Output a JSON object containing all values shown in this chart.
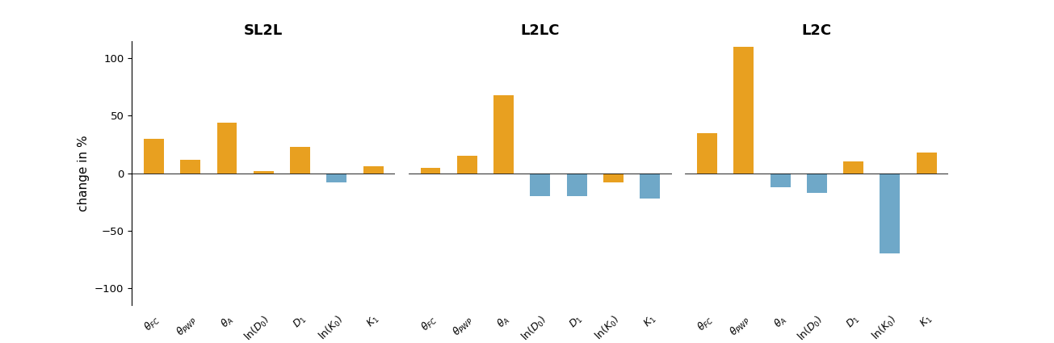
{
  "subplot_titles": [
    "SL2L",
    "L2LC",
    "L2C"
  ],
  "categories": [
    "θₜₛ",
    "θₚᵡₚ",
    "θₐ",
    "ln(D₀)",
    "D₁",
    "ln(K₀)",
    "K₁"
  ],
  "values": [
    [
      30,
      12,
      44,
      2,
      23,
      -8,
      6
    ],
    [
      5,
      15,
      68,
      -20,
      -20,
      -8,
      -22
    ],
    [
      35,
      110,
      -12,
      -17,
      10,
      -70,
      18
    ]
  ],
  "colors": [
    [
      "#E8A020",
      "#E8A020",
      "#E8A020",
      "#E8A020",
      "#E8A020",
      "#6FA8C8",
      "#E8A020"
    ],
    [
      "#E8A020",
      "#E8A020",
      "#E8A020",
      "#6FA8C8",
      "#6FA8C8",
      "#E8A020",
      "#6FA8C8"
    ],
    [
      "#E8A020",
      "#E8A020",
      "#6FA8C8",
      "#6FA8C8",
      "#E8A020",
      "#6FA8C8",
      "#E8A020"
    ]
  ],
  "ylim": [
    -115,
    115
  ],
  "yticks": [
    -100,
    -50,
    0,
    50,
    100
  ],
  "ylabel": "change in %",
  "background": "#FFFFFF",
  "bar_width": 0.55,
  "title_fontsize": 13,
  "label_fontsize": 9,
  "ylabel_fontsize": 11
}
